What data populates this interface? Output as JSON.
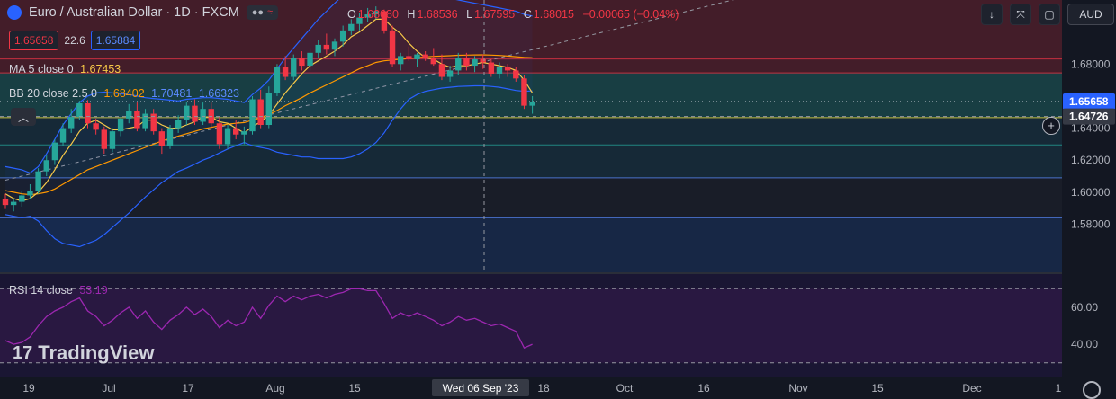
{
  "header": {
    "title": "Euro / Australian Dollar · 1D · FXCM",
    "ohlc": [
      {
        "k": "O",
        "v": "1.68080"
      },
      {
        "k": "H",
        "v": "1.68536"
      },
      {
        "k": "L",
        "v": "1.67595"
      },
      {
        "k": "C",
        "v": "1.68015"
      }
    ],
    "change": "−0.00065 (−0.04%)"
  },
  "trade": {
    "sell": "1.65658",
    "spread": "22.6",
    "buy": "1.65884"
  },
  "indicators": {
    "ma": {
      "label": "MA 5 close 0",
      "value": "1.67453"
    },
    "bb": {
      "label": "BB 20 close 2.5 0",
      "basis": "1.68402",
      "upper": "1.70481",
      "lower": "1.66323"
    },
    "rsi": {
      "label": "RSI 14 close",
      "value": "53.19"
    }
  },
  "currency": "AUD",
  "brand": "TradingView",
  "colors": {
    "background": "#131722",
    "up": "#26a69a",
    "down": "#f23645",
    "ma": "#f7c948",
    "bb_basis": "#ff9800",
    "bb_band": "#2962ff",
    "rsi": "#9c27b0",
    "sell": "#f23645",
    "buy": "#2962ff"
  },
  "chart_data": {
    "type": "candlestick",
    "y_axis": {
      "ticks": [
        1.58,
        1.6,
        1.62,
        1.64,
        1.68
      ],
      "tick_labels": [
        "1.58000",
        "1.60000",
        "1.62000",
        "1.64000",
        "1.68000"
      ],
      "range": [
        1.55,
        1.72
      ]
    },
    "x_axis": {
      "tick_labels": [
        "19",
        "Jul",
        "17",
        "Aug",
        "15",
        "Wed 06 Sep '23",
        "18",
        "Oct",
        "16",
        "Nov",
        "15",
        "Dec",
        "1"
      ]
    },
    "price_labels": [
      {
        "label": "1.65658",
        "value": 1.65658,
        "kind": "last"
      },
      {
        "label": "1.64726",
        "value": 1.64726,
        "kind": "crosshair"
      }
    ],
    "horizontal_levels": [
      1.6832,
      1.6745,
      1.6466,
      1.6295,
      1.609,
      1.584
    ],
    "zones": [
      {
        "from": 1.6745,
        "to": 1.72,
        "color": "#f23645"
      },
      {
        "from": 1.6466,
        "to": 1.6745,
        "color": "#26a69a"
      },
      {
        "from": 1.609,
        "to": 1.6466,
        "color": "#22586f"
      },
      {
        "from": 1.584,
        "to": 1.609,
        "color": "#2a2e39"
      },
      {
        "from": 1.55,
        "to": 1.584,
        "color": "#1c3563"
      }
    ],
    "trendline": [
      [
        0,
        1.6075
      ],
      [
        84,
        1.7145
      ]
    ],
    "candles": [
      [
        1.596,
        1.599,
        1.5895,
        1.592
      ],
      [
        1.592,
        1.596,
        1.588,
        1.594
      ],
      [
        1.594,
        1.601,
        1.591,
        1.598
      ],
      [
        1.598,
        1.605,
        1.596,
        1.601
      ],
      [
        1.601,
        1.615,
        1.599,
        1.613
      ],
      [
        1.613,
        1.623,
        1.61,
        1.62
      ],
      [
        1.62,
        1.633,
        1.617,
        1.631
      ],
      [
        1.631,
        1.643,
        1.629,
        1.64
      ],
      [
        1.64,
        1.652,
        1.637,
        1.647
      ],
      [
        1.647,
        1.657,
        1.645,
        1.6555
      ],
      [
        1.6555,
        1.6575,
        1.64,
        1.643
      ],
      [
        1.643,
        1.646,
        1.636,
        1.639
      ],
      [
        1.639,
        1.641,
        1.624,
        1.627
      ],
      [
        1.627,
        1.64,
        1.625,
        1.638
      ],
      [
        1.638,
        1.647,
        1.635,
        1.646
      ],
      [
        1.646,
        1.655,
        1.643,
        1.651
      ],
      [
        1.651,
        1.656,
        1.638,
        1.64
      ],
      [
        1.64,
        1.652,
        1.638,
        1.649
      ],
      [
        1.649,
        1.652,
        1.636,
        1.638
      ],
      [
        1.638,
        1.64,
        1.624,
        1.629
      ],
      [
        1.629,
        1.642,
        1.627,
        1.64
      ],
      [
        1.64,
        1.648,
        1.637,
        1.645
      ],
      [
        1.645,
        1.656,
        1.642,
        1.654
      ],
      [
        1.654,
        1.658,
        1.642,
        1.644
      ],
      [
        1.644,
        1.656,
        1.642,
        1.652
      ],
      [
        1.652,
        1.656,
        1.64,
        1.643
      ],
      [
        1.643,
        1.647,
        1.627,
        1.63
      ],
      [
        1.63,
        1.642,
        1.627,
        1.64
      ],
      [
        1.64,
        1.645,
        1.633,
        1.636
      ],
      [
        1.636,
        1.641,
        1.63,
        1.638
      ],
      [
        1.638,
        1.66,
        1.636,
        1.658
      ],
      [
        1.658,
        1.664,
        1.64,
        1.642
      ],
      [
        1.642,
        1.666,
        1.64,
        1.662
      ],
      [
        1.662,
        1.68,
        1.66,
        1.678
      ],
      [
        1.678,
        1.685,
        1.67,
        1.672
      ],
      [
        1.672,
        1.686,
        1.67,
        1.684
      ],
      [
        1.684,
        1.688,
        1.676,
        1.679
      ],
      [
        1.679,
        1.69,
        1.676,
        1.687
      ],
      [
        1.687,
        1.695,
        1.684,
        1.692
      ],
      [
        1.692,
        1.699,
        1.686,
        1.689
      ],
      [
        1.689,
        1.696,
        1.685,
        1.694
      ],
      [
        1.694,
        1.704,
        1.691,
        1.701
      ],
      [
        1.701,
        1.708,
        1.698,
        1.705
      ],
      [
        1.705,
        1.712,
        1.701,
        1.709
      ],
      [
        1.709,
        1.715,
        1.706,
        1.711
      ],
      [
        1.711,
        1.716,
        1.708,
        1.713
      ],
      [
        1.713,
        1.714,
        1.699,
        1.701
      ],
      [
        1.701,
        1.704,
        1.678,
        1.68
      ],
      [
        1.68,
        1.687,
        1.676,
        1.685
      ],
      [
        1.685,
        1.691,
        1.682,
        1.683
      ],
      [
        1.683,
        1.687,
        1.678,
        1.686
      ],
      [
        1.686,
        1.688,
        1.682,
        1.684
      ],
      [
        1.684,
        1.69,
        1.679,
        1.68
      ],
      [
        1.68,
        1.686,
        1.67,
        1.672
      ],
      [
        1.672,
        1.679,
        1.669,
        1.676
      ],
      [
        1.676,
        1.687,
        1.673,
        1.684
      ],
      [
        1.684,
        1.687,
        1.676,
        1.679
      ],
      [
        1.679,
        1.685,
        1.675,
        1.683
      ],
      [
        1.683,
        1.686,
        1.677,
        1.681
      ],
      [
        1.681,
        1.683,
        1.672,
        1.674
      ],
      [
        1.674,
        1.681,
        1.671,
        1.678
      ],
      [
        1.678,
        1.68,
        1.672,
        1.676
      ],
      [
        1.676,
        1.678,
        1.669,
        1.671
      ],
      [
        1.671,
        1.673,
        1.652,
        1.654
      ],
      [
        1.654,
        1.66,
        1.649,
        1.6566
      ]
    ],
    "ma5": [
      1.599,
      1.596,
      1.5945,
      1.596,
      1.6,
      1.606,
      1.614,
      1.623,
      1.63,
      1.638,
      1.643,
      1.645,
      1.642,
      1.639,
      1.639,
      1.64,
      1.641,
      1.645,
      1.645,
      1.642,
      1.64,
      1.64,
      1.642,
      1.644,
      1.647,
      1.647,
      1.644,
      1.643,
      1.64,
      1.637,
      1.641,
      1.644,
      1.648,
      1.655,
      1.662,
      1.668,
      1.674,
      1.679,
      1.682,
      1.685,
      1.688,
      1.692,
      1.697,
      1.7,
      1.704,
      1.708,
      1.708,
      1.703,
      1.699,
      1.693,
      1.688,
      1.684,
      1.683,
      1.68,
      1.678,
      1.679,
      1.679,
      1.68,
      1.681,
      1.68,
      1.679,
      1.678,
      1.676,
      1.67,
      1.662
    ],
    "bb_basis": [
      1.601,
      1.6,
      1.599,
      1.5985,
      1.599,
      1.6,
      1.602,
      1.605,
      1.608,
      1.611,
      1.614,
      1.616,
      1.618,
      1.62,
      1.622,
      1.624,
      1.626,
      1.628,
      1.63,
      1.632,
      1.6335,
      1.635,
      1.6365,
      1.638,
      1.6395,
      1.6405,
      1.6415,
      1.6425,
      1.643,
      1.6435,
      1.645,
      1.6465,
      1.6485,
      1.651,
      1.654,
      1.6565,
      1.659,
      1.662,
      1.6645,
      1.667,
      1.6695,
      1.672,
      1.6745,
      1.677,
      1.679,
      1.681,
      1.682,
      1.6825,
      1.683,
      1.6835,
      1.684,
      1.6845,
      1.6848,
      1.685,
      1.6852,
      1.6855,
      1.6856,
      1.6857,
      1.6858,
      1.6856,
      1.6854,
      1.685,
      1.6846,
      1.6842,
      1.684
    ],
    "bb_upper": [
      1.616,
      1.615,
      1.614,
      1.612,
      1.616,
      1.624,
      1.633,
      1.642,
      1.649,
      1.656,
      1.66,
      1.662,
      1.6625,
      1.662,
      1.6615,
      1.661,
      1.66,
      1.659,
      1.6585,
      1.658,
      1.6575,
      1.657,
      1.658,
      1.6585,
      1.659,
      1.659,
      1.6585,
      1.658,
      1.657,
      1.656,
      1.661,
      1.665,
      1.67,
      1.677,
      1.684,
      1.69,
      1.696,
      1.702,
      1.708,
      1.713,
      1.718,
      1.723,
      1.727,
      1.73,
      1.732,
      1.733,
      1.733,
      1.732,
      1.731,
      1.73,
      1.729,
      1.727,
      1.725,
      1.723,
      1.721,
      1.72,
      1.719,
      1.718,
      1.717,
      1.716,
      1.715,
      1.714,
      1.713,
      1.711,
      1.71
    ],
    "bb_lower": [
      1.586,
      1.585,
      1.584,
      1.585,
      1.582,
      1.576,
      1.571,
      1.568,
      1.567,
      1.566,
      1.568,
      1.57,
      1.5735,
      1.578,
      1.5825,
      1.587,
      1.592,
      1.597,
      1.6015,
      1.606,
      1.6095,
      1.613,
      1.615,
      1.6175,
      1.62,
      1.622,
      1.6245,
      1.627,
      1.629,
      1.631,
      1.629,
      1.628,
      1.627,
      1.625,
      1.624,
      1.623,
      1.622,
      1.622,
      1.621,
      1.621,
      1.621,
      1.621,
      1.622,
      1.624,
      1.627,
      1.631,
      1.637,
      1.645,
      1.652,
      1.658,
      1.661,
      1.663,
      1.664,
      1.665,
      1.6655,
      1.666,
      1.6662,
      1.6664,
      1.6664,
      1.666,
      1.6655,
      1.6645,
      1.6635,
      1.663,
      1.6632
    ],
    "rsi": {
      "ticks": [
        40,
        60
      ],
      "tick_labels": [
        "40.00",
        "60.00"
      ],
      "bands": [
        30,
        70
      ],
      "range": [
        25,
        75
      ],
      "values": [
        42,
        40,
        41,
        44,
        50,
        55,
        58,
        60,
        63,
        65,
        58,
        55,
        50,
        53,
        57,
        60,
        54,
        58,
        52,
        48,
        53,
        56,
        60,
        56,
        59,
        55,
        49,
        53,
        50,
        52,
        60,
        54,
        61,
        66,
        63,
        66,
        64,
        66,
        67,
        65,
        67,
        68,
        70,
        70,
        69,
        69,
        62,
        54,
        57,
        55,
        57,
        55,
        53,
        50,
        52,
        55,
        53,
        54,
        52,
        50,
        51,
        49,
        47,
        38,
        40
      ]
    }
  }
}
